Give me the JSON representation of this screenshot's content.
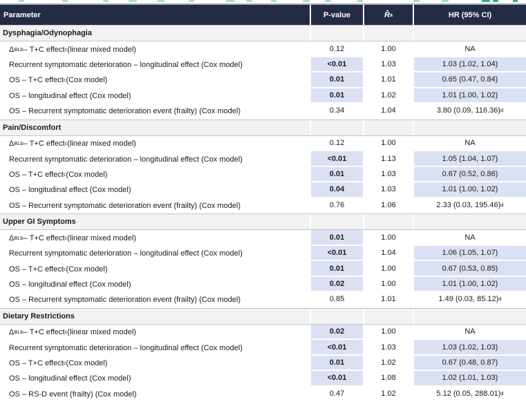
{
  "colors": {
    "header_bg": "#232b45",
    "highlight": "#dbe1f2",
    "section_bg": "#f2f2f2",
    "accent_teal": "#2fa894"
  },
  "table": {
    "columns": {
      "parameter": "Parameter",
      "pvalue": "P-value",
      "rhat": "R̂",
      "rhat_sup": "a",
      "hr": "HR (95% CI)"
    },
    "sections": [
      {
        "title": "Dysphagia/Odynophagia",
        "rows": [
          {
            "label": "Δ~BL~^b^ – T+C effect^c^ (linear mixed model)",
            "p": "0.12",
            "p_sig": false,
            "rhat": "1.00",
            "hr": "NA",
            "hr_hl": false
          },
          {
            "label": "Recurrent symptomatic deterioration – longitudinal effect (Cox model)",
            "p": "<0.01",
            "p_sig": true,
            "rhat": "1.03",
            "hr": "1.03 (1.02, 1.04)",
            "hr_hl": true
          },
          {
            "label": "OS – T+C effect^c^ (Cox model)",
            "p": "0.01",
            "p_sig": true,
            "rhat": "1.01",
            "hr": "0.65 (0.47, 0.84)",
            "hr_hl": true
          },
          {
            "label": "OS – longitudinal effect (Cox model)",
            "p": "0.01",
            "p_sig": true,
            "rhat": "1.02",
            "hr": "1.01 (1.00, 1.02)",
            "hr_hl": true
          },
          {
            "label": "OS – Recurrent symptomatic deterioration event (frailty) (Cox model)",
            "p": "0.34",
            "p_sig": false,
            "rhat": "1.04",
            "hr": "3.80 (0.09, 116.36)^d^",
            "hr_hl": false
          }
        ]
      },
      {
        "title": "Pain/Discomfort",
        "rows": [
          {
            "label": "Δ~BL~^b^ – T+C effect^c^ (linear mixed model)",
            "p": "0.12",
            "p_sig": false,
            "rhat": "1.00",
            "hr": "NA",
            "hr_hl": false
          },
          {
            "label": "Recurrent symptomatic deterioration – longitudinal effect (Cox model)",
            "p": "<0.01",
            "p_sig": true,
            "rhat": "1.13",
            "hr": "1.05 (1.04, 1.07)",
            "hr_hl": true
          },
          {
            "label": "OS – T+C effect^c^ (Cox model)",
            "p": "0.01",
            "p_sig": true,
            "rhat": "1.03",
            "hr": "0.67 (0.52, 0.86)",
            "hr_hl": true
          },
          {
            "label": "OS – longitudinal effect (Cox model)",
            "p": "0.04",
            "p_sig": true,
            "rhat": "1.03",
            "hr": "1.01 (1.00, 1.02)",
            "hr_hl": true
          },
          {
            "label": "OS – Recurrent symptomatic deterioration event (frailty) (Cox model)",
            "p": "0.76",
            "p_sig": false,
            "rhat": "1.06",
            "hr": "2.33 (0.03, 195.46)^d^",
            "hr_hl": false
          }
        ]
      },
      {
        "title": "Upper GI Symptoms",
        "rows": [
          {
            "label": "Δ~BL~^b^ – T+C effect^c^ (linear mixed model)",
            "p": "0.01",
            "p_sig": true,
            "rhat": "1.00",
            "hr": "NA",
            "hr_hl": false
          },
          {
            "label": "Recurrent symptomatic deterioration – longitudinal effect (Cox model)",
            "p": "<0.01",
            "p_sig": true,
            "rhat": "1.04",
            "hr": "1.06 (1.05, 1.07)",
            "hr_hl": true
          },
          {
            "label": "OS – T+C effect^c^ (Cox model)",
            "p": "0.01",
            "p_sig": true,
            "rhat": "1.00",
            "hr": "0.67 (0.53, 0.85)",
            "hr_hl": true
          },
          {
            "label": "OS – longitudinal effect (Cox model)",
            "p": "0.02",
            "p_sig": true,
            "rhat": "1.00",
            "hr": "1.01 (1.00, 1.02)",
            "hr_hl": true
          },
          {
            "label": "OS – Recurrent symptomatic deterioration event (frailty) (Cox model)",
            "p": "0.85",
            "p_sig": false,
            "rhat": "1.01",
            "hr": "1.49 (0.03, 85.12)^d^",
            "hr_hl": false
          }
        ]
      },
      {
        "title": "Dietary Restrictions",
        "rows": [
          {
            "label": "Δ~BL~^b^ – T+C effect^c^ (linear mixed model)",
            "p": "0.02",
            "p_sig": true,
            "rhat": "1.00",
            "hr": "NA",
            "hr_hl": false
          },
          {
            "label": "Recurrent symptomatic deterioration – longitudinal effect (Cox model)",
            "p": "<0.01",
            "p_sig": true,
            "rhat": "1.03",
            "hr": "1.03 (1.02, 1.03)",
            "hr_hl": true
          },
          {
            "label": "OS – T+C effect^c^ (Cox model)",
            "p": "0.01",
            "p_sig": true,
            "rhat": "1.02",
            "hr": "0.67 (0.48, 0.87)",
            "hr_hl": true
          },
          {
            "label": "OS – longitudinal effect (Cox model)",
            "p": "<0.01",
            "p_sig": true,
            "rhat": "1.08",
            "hr": "1.02 (1.01, 1.03)",
            "hr_hl": true
          },
          {
            "label": "OS – RS-D event (frailty) (Cox model)",
            "p": "0.47",
            "p_sig": false,
            "rhat": "1.02",
            "hr": "5.12 (0.05, 288.01)^d^",
            "hr_hl": false
          }
        ]
      }
    ]
  }
}
